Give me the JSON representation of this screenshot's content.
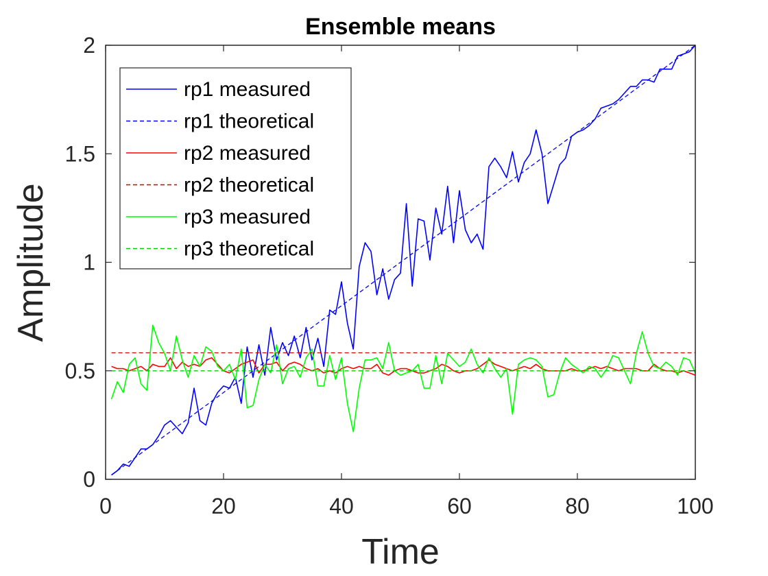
{
  "chart_data": {
    "type": "line",
    "title": "Ensemble means",
    "xlabel": "Time",
    "ylabel": "Amplitude",
    "xlim": [
      0,
      100
    ],
    "ylim": [
      0,
      2
    ],
    "xticks": [
      0,
      20,
      40,
      60,
      80,
      100
    ],
    "xtick_labels": [
      "0",
      "20",
      "40",
      "60",
      "80",
      "100"
    ],
    "yticks": [
      0,
      0.5,
      1,
      1.5,
      2
    ],
    "ytick_labels": [
      "0",
      "0.5",
      "1",
      "1.5",
      "2"
    ],
    "grid": false,
    "legend_position": "top-left",
    "x": [
      1,
      2,
      3,
      4,
      5,
      6,
      7,
      8,
      9,
      10,
      11,
      12,
      13,
      14,
      15,
      16,
      17,
      18,
      19,
      20,
      21,
      22,
      23,
      24,
      25,
      26,
      27,
      28,
      29,
      30,
      31,
      32,
      33,
      34,
      35,
      36,
      37,
      38,
      39,
      40,
      41,
      42,
      43,
      44,
      45,
      46,
      47,
      48,
      49,
      50,
      51,
      52,
      53,
      54,
      55,
      56,
      57,
      58,
      59,
      60,
      61,
      62,
      63,
      64,
      65,
      66,
      67,
      68,
      69,
      70,
      71,
      72,
      73,
      74,
      75,
      76,
      77,
      78,
      79,
      80,
      81,
      82,
      83,
      84,
      85,
      86,
      87,
      88,
      89,
      90,
      91,
      92,
      93,
      94,
      95,
      96,
      97,
      98,
      99,
      100
    ],
    "series": [
      {
        "name": "rp1 measured",
        "color": "#0000ff",
        "style": "solid",
        "values": [
          0.02,
          0.04,
          0.07,
          0.06,
          0.1,
          0.14,
          0.14,
          0.16,
          0.2,
          0.25,
          0.27,
          0.24,
          0.21,
          0.26,
          0.42,
          0.27,
          0.25,
          0.35,
          0.4,
          0.43,
          0.42,
          0.47,
          0.35,
          0.61,
          0.47,
          0.62,
          0.48,
          0.7,
          0.55,
          0.63,
          0.57,
          0.66,
          0.56,
          0.7,
          0.55,
          0.65,
          0.52,
          0.78,
          0.76,
          0.91,
          0.72,
          0.6,
          0.98,
          1.09,
          1.05,
          0.85,
          0.97,
          0.83,
          0.92,
          0.95,
          1.27,
          0.89,
          1.2,
          1.19,
          1.01,
          1.25,
          1.13,
          1.35,
          1.09,
          1.33,
          1.15,
          1.09,
          1.13,
          1.06,
          1.44,
          1.48,
          1.44,
          1.39,
          1.51,
          1.37,
          1.46,
          1.5,
          1.61,
          1.5,
          1.27,
          1.36,
          1.45,
          1.48,
          1.58,
          1.6,
          1.61,
          1.63,
          1.66,
          1.71,
          1.72,
          1.73,
          1.75,
          1.78,
          1.81,
          1.81,
          1.84,
          1.84,
          1.83,
          1.89,
          1.89,
          1.89,
          1.95,
          1.96,
          1.97,
          2.0
        ]
      },
      {
        "name": "rp1 theoretical",
        "color": "#0000ff",
        "style": "dashed",
        "values": [
          0.02,
          0.04,
          0.06,
          0.08,
          0.1,
          0.12,
          0.14,
          0.16,
          0.18,
          0.2,
          0.22,
          0.24,
          0.26,
          0.28,
          0.3,
          0.32,
          0.34,
          0.36,
          0.38,
          0.4,
          0.42,
          0.44,
          0.46,
          0.48,
          0.5,
          0.52,
          0.54,
          0.56,
          0.58,
          0.6,
          0.62,
          0.64,
          0.66,
          0.68,
          0.7,
          0.72,
          0.74,
          0.76,
          0.78,
          0.8,
          0.82,
          0.84,
          0.86,
          0.88,
          0.9,
          0.92,
          0.94,
          0.96,
          0.98,
          1.0,
          1.02,
          1.04,
          1.06,
          1.08,
          1.1,
          1.12,
          1.14,
          1.16,
          1.18,
          1.2,
          1.22,
          1.24,
          1.26,
          1.28,
          1.3,
          1.32,
          1.34,
          1.36,
          1.38,
          1.4,
          1.42,
          1.44,
          1.46,
          1.48,
          1.5,
          1.52,
          1.54,
          1.56,
          1.58,
          1.6,
          1.62,
          1.64,
          1.66,
          1.68,
          1.7,
          1.72,
          1.74,
          1.76,
          1.78,
          1.8,
          1.82,
          1.84,
          1.86,
          1.88,
          1.9,
          1.92,
          1.94,
          1.96,
          1.98,
          2.0
        ]
      },
      {
        "name": "rp2 measured",
        "color": "#ff0000",
        "style": "solid",
        "values": [
          0.52,
          0.51,
          0.51,
          0.5,
          0.51,
          0.52,
          0.5,
          0.53,
          0.52,
          0.52,
          0.56,
          0.51,
          0.54,
          0.52,
          0.53,
          0.52,
          0.55,
          0.56,
          0.53,
          0.5,
          0.49,
          0.51,
          0.53,
          0.54,
          0.55,
          0.49,
          0.53,
          0.53,
          0.54,
          0.5,
          0.53,
          0.54,
          0.53,
          0.51,
          0.5,
          0.51,
          0.49,
          0.5,
          0.49,
          0.51,
          0.52,
          0.51,
          0.52,
          0.51,
          0.51,
          0.53,
          0.49,
          0.48,
          0.5,
          0.51,
          0.51,
          0.5,
          0.49,
          0.49,
          0.5,
          0.51,
          0.53,
          0.52,
          0.5,
          0.49,
          0.5,
          0.5,
          0.51,
          0.53,
          0.55,
          0.53,
          0.52,
          0.51,
          0.5,
          0.51,
          0.52,
          0.51,
          0.53,
          0.51,
          0.5,
          0.5,
          0.5,
          0.5,
          0.51,
          0.5,
          0.5,
          0.51,
          0.52,
          0.51,
          0.52,
          0.51,
          0.5,
          0.51,
          0.51,
          0.51,
          0.5,
          0.5,
          0.53,
          0.51,
          0.5,
          0.5,
          0.49,
          0.5,
          0.49,
          0.48
        ]
      },
      {
        "name": "rp2 theoretical",
        "color": "#cc0000",
        "style": "dashed",
        "values": [
          0.583,
          0.583,
          0.583,
          0.583,
          0.583,
          0.583,
          0.583,
          0.583,
          0.583,
          0.583,
          0.583,
          0.583,
          0.583,
          0.583,
          0.583,
          0.583,
          0.583,
          0.583,
          0.583,
          0.583,
          0.583,
          0.583,
          0.583,
          0.583,
          0.583,
          0.583,
          0.583,
          0.583,
          0.583,
          0.583,
          0.583,
          0.583,
          0.583,
          0.583,
          0.583,
          0.583,
          0.583,
          0.583,
          0.583,
          0.583,
          0.583,
          0.583,
          0.583,
          0.583,
          0.583,
          0.583,
          0.583,
          0.583,
          0.583,
          0.583,
          0.583,
          0.583,
          0.583,
          0.583,
          0.583,
          0.583,
          0.583,
          0.583,
          0.583,
          0.583,
          0.583,
          0.583,
          0.583,
          0.583,
          0.583,
          0.583,
          0.583,
          0.583,
          0.583,
          0.583,
          0.583,
          0.583,
          0.583,
          0.583,
          0.583,
          0.583,
          0.583,
          0.583,
          0.583,
          0.583,
          0.583,
          0.583,
          0.583,
          0.583,
          0.583,
          0.583,
          0.583,
          0.583,
          0.583,
          0.583,
          0.583,
          0.583,
          0.583,
          0.583,
          0.583,
          0.583,
          0.583,
          0.583,
          0.583,
          0.583
        ]
      },
      {
        "name": "rp3 measured",
        "color": "#00ff00",
        "style": "solid",
        "values": [
          0.37,
          0.45,
          0.4,
          0.53,
          0.56,
          0.44,
          0.41,
          0.71,
          0.63,
          0.58,
          0.5,
          0.66,
          0.55,
          0.47,
          0.57,
          0.52,
          0.61,
          0.59,
          0.52,
          0.5,
          0.53,
          0.46,
          0.6,
          0.33,
          0.34,
          0.46,
          0.53,
          0.49,
          0.62,
          0.44,
          0.51,
          0.52,
          0.47,
          0.56,
          0.6,
          0.43,
          0.43,
          0.57,
          0.46,
          0.56,
          0.35,
          0.22,
          0.42,
          0.55,
          0.55,
          0.56,
          0.51,
          0.63,
          0.5,
          0.48,
          0.49,
          0.5,
          0.53,
          0.42,
          0.42,
          0.57,
          0.44,
          0.58,
          0.55,
          0.52,
          0.54,
          0.6,
          0.53,
          0.49,
          0.56,
          0.51,
          0.47,
          0.51,
          0.3,
          0.53,
          0.55,
          0.56,
          0.55,
          0.52,
          0.38,
          0.39,
          0.49,
          0.56,
          0.53,
          0.51,
          0.49,
          0.52,
          0.51,
          0.47,
          0.51,
          0.57,
          0.56,
          0.5,
          0.44,
          0.58,
          0.68,
          0.58,
          0.52,
          0.51,
          0.54,
          0.52,
          0.48,
          0.56,
          0.55,
          0.49
        ]
      },
      {
        "name": "rp3 theoretical",
        "color": "#00cc00",
        "style": "dashed",
        "values": [
          0.5,
          0.5,
          0.5,
          0.5,
          0.5,
          0.5,
          0.5,
          0.5,
          0.5,
          0.5,
          0.5,
          0.5,
          0.5,
          0.5,
          0.5,
          0.5,
          0.5,
          0.5,
          0.5,
          0.5,
          0.5,
          0.5,
          0.5,
          0.5,
          0.5,
          0.5,
          0.5,
          0.5,
          0.5,
          0.5,
          0.5,
          0.5,
          0.5,
          0.5,
          0.5,
          0.5,
          0.5,
          0.5,
          0.5,
          0.5,
          0.5,
          0.5,
          0.5,
          0.5,
          0.5,
          0.5,
          0.5,
          0.5,
          0.5,
          0.5,
          0.5,
          0.5,
          0.5,
          0.5,
          0.5,
          0.5,
          0.5,
          0.5,
          0.5,
          0.5,
          0.5,
          0.5,
          0.5,
          0.5,
          0.5,
          0.5,
          0.5,
          0.5,
          0.5,
          0.5,
          0.5,
          0.5,
          0.5,
          0.5,
          0.5,
          0.5,
          0.5,
          0.5,
          0.5,
          0.5,
          0.5,
          0.5,
          0.5,
          0.5,
          0.5,
          0.5,
          0.5,
          0.5,
          0.5,
          0.5,
          0.5,
          0.5,
          0.5,
          0.5,
          0.5,
          0.5,
          0.5,
          0.5,
          0.5,
          0.5
        ]
      }
    ]
  }
}
